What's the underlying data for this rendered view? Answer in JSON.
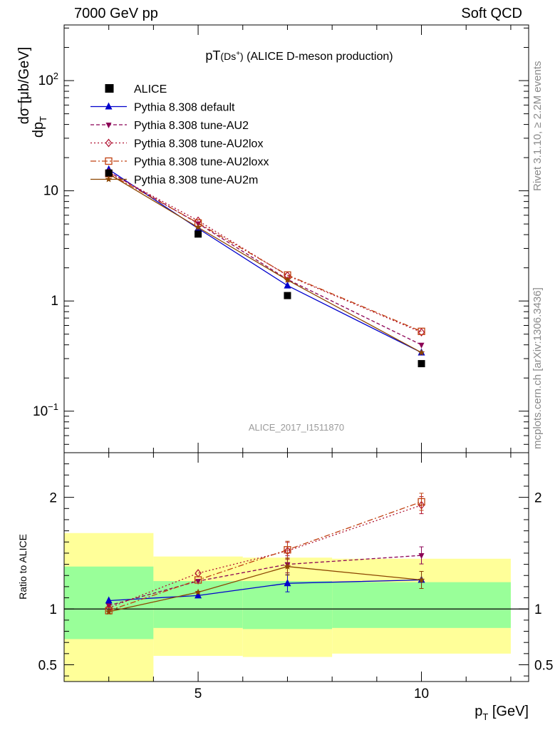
{
  "header": {
    "left": "7000 GeV pp",
    "right": "Soft QCD"
  },
  "side_labels": {
    "rivet": "Rivet 3.1.10, ≥ 2.2M events",
    "mcplots": "mcplots.cern.ch [arXiv:1306.3436]"
  },
  "chart_data": {
    "type": "scatter",
    "title_main": "pT",
    "title_paren_open": "(Ds",
    "title_sup": "+",
    "title_paren_close": ")",
    "title_rest": " (ALICE D-meson production)",
    "watermark": "ALICE_2017_I1511870",
    "xlabel_main": "p",
    "xlabel_sub": "T",
    "xlabel_unit": " [GeV]",
    "ylabel_top_main": "dσ",
    "ylabel_top_rest": " [μb/GeV]",
    "ylabel_bottom_main": "dp",
    "ylabel_bottom_sub": "T",
    "ratio_ylabel": "Ratio to ALICE",
    "x_range": [
      2,
      12.4
    ],
    "y_range_log": [
      0.042,
      320
    ],
    "ratio_range": [
      0.35,
      2.4
    ],
    "x_ticks": [
      "5",
      "10"
    ],
    "y_ticks": [
      {
        "value": 0.1,
        "base": "10",
        "exp": "−1"
      },
      {
        "value": 1,
        "base": "1",
        "exp": ""
      },
      {
        "value": 10,
        "base": "10",
        "exp": ""
      },
      {
        "value": 100,
        "base": "10",
        "exp": "2"
      }
    ],
    "ratio_ticks": [
      "0.5",
      "1",
      "2"
    ],
    "data": {
      "name": "ALICE",
      "x": [
        3,
        5,
        7,
        10
      ],
      "y": [
        14.5,
        4.05,
        1.12,
        0.27
      ],
      "bins": [
        [
          2,
          4
        ],
        [
          4,
          6
        ],
        [
          6,
          8
        ],
        [
          8,
          12
        ]
      ],
      "band_inner": [
        [
          0.73,
          1.38
        ],
        [
          0.83,
          1.25
        ],
        [
          0.82,
          1.25
        ],
        [
          0.83,
          1.24
        ]
      ],
      "band_outer": [
        [
          0.35,
          1.68
        ],
        [
          0.58,
          1.47
        ],
        [
          0.57,
          1.46
        ],
        [
          0.6,
          1.45
        ]
      ]
    },
    "series": [
      {
        "name": "Pythia 8.308 default",
        "color": "#0000cc",
        "marker": "triangle-up",
        "dash": "",
        "y": [
          15.6,
          4.55,
          1.38,
          0.34
        ],
        "ratio": [
          1.075,
          1.12,
          1.23,
          1.26
        ]
      },
      {
        "name": "Pythia 8.308 tune-AU2",
        "color": "#8b0055",
        "marker": "triangle-down",
        "dash": "5,3",
        "y": [
          14.9,
          5.05,
          1.57,
          0.4
        ],
        "ratio": [
          1.03,
          1.25,
          1.4,
          1.48
        ]
      },
      {
        "name": "Pythia 8.308 tune-AU2lox",
        "color": "#b01030",
        "marker": "diamond-open",
        "dash": "2,3",
        "y": [
          14.7,
          5.35,
          1.7,
          0.52
        ],
        "ratio": [
          1.01,
          1.32,
          1.52,
          1.93
        ]
      },
      {
        "name": "Pythia 8.308 tune-AU2loxx",
        "color": "#c04010",
        "marker": "square-open",
        "dash": "8,3,2,3",
        "y": [
          14.3,
          5.1,
          1.72,
          0.53
        ],
        "ratio": [
          0.985,
          1.26,
          1.53,
          1.96
        ]
      },
      {
        "name": "Pythia 8.308 tune-AU2m",
        "color": "#8b4500",
        "marker": "star",
        "dash": "",
        "y": [
          14.2,
          4.65,
          1.55,
          0.34
        ],
        "ratio": [
          0.975,
          1.15,
          1.38,
          1.26
        ]
      }
    ]
  }
}
